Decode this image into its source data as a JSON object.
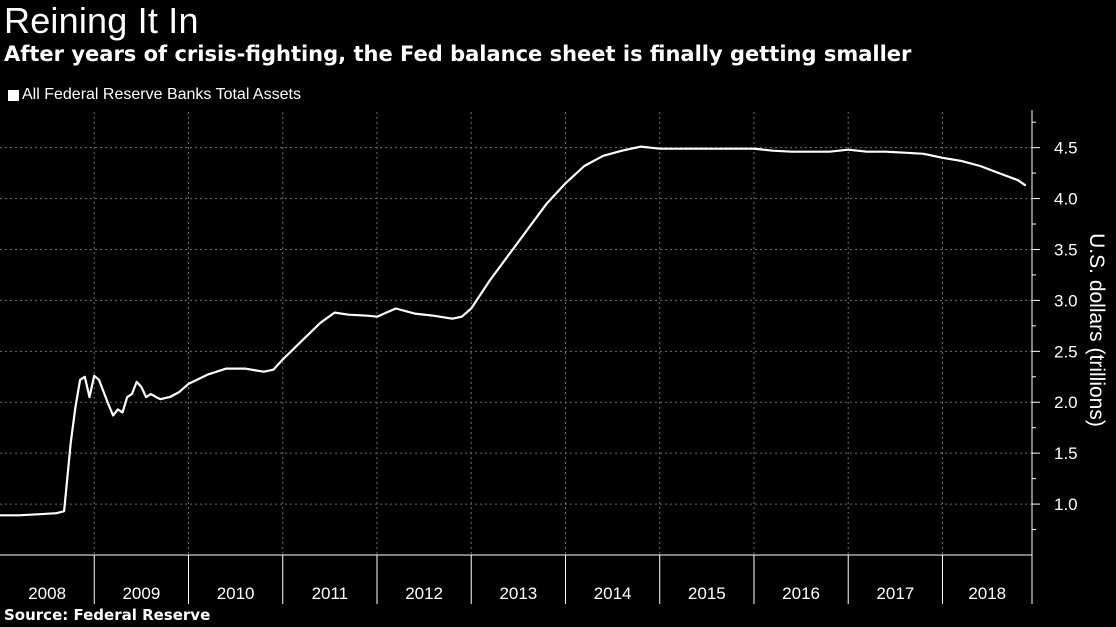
{
  "title": "Reining It In",
  "subtitle": "After years of crisis-fighting, the Fed balance sheet is finally getting smaller",
  "source": "Source: Federal Reserve",
  "colors": {
    "background": "#000000",
    "line": "#ffffff",
    "grid": "#6e6e6e",
    "text": "#ffffff"
  },
  "chart_data": {
    "type": "line",
    "title": "Reining It In",
    "subtitle": "After years of crisis-fighting, the Fed balance sheet is finally getting smaller",
    "ylabel": "U.S. dollars (trillions)",
    "xlabel": "",
    "ylim": [
      0.5,
      4.85
    ],
    "xlim": [
      2008.0,
      2018.95
    ],
    "yticks": [
      "1.0",
      "1.5",
      "2.0",
      "2.5",
      "3.0",
      "3.5",
      "4.0",
      "4.5"
    ],
    "ytick_values": [
      1.0,
      1.5,
      2.0,
      2.5,
      3.0,
      3.5,
      4.0,
      4.5
    ],
    "xticks": [
      "2008",
      "2009",
      "2010",
      "2011",
      "2012",
      "2013",
      "2014",
      "2015",
      "2016",
      "2017",
      "2018"
    ],
    "grid": true,
    "legend_position": "top-left",
    "series": [
      {
        "name": "All Federal Reserve Banks Total Assets",
        "x": [
          2008.0,
          2008.2,
          2008.4,
          2008.6,
          2008.68,
          2008.75,
          2008.8,
          2008.85,
          2008.9,
          2008.95,
          2009.0,
          2009.05,
          2009.1,
          2009.15,
          2009.2,
          2009.25,
          2009.3,
          2009.35,
          2009.4,
          2009.45,
          2009.5,
          2009.55,
          2009.6,
          2009.7,
          2009.8,
          2009.9,
          2010.0,
          2010.2,
          2010.4,
          2010.6,
          2010.8,
          2010.9,
          2011.0,
          2011.2,
          2011.4,
          2011.55,
          2011.7,
          2011.9,
          2012.0,
          2012.2,
          2012.4,
          2012.6,
          2012.8,
          2012.9,
          2013.0,
          2013.2,
          2013.4,
          2013.6,
          2013.8,
          2014.0,
          2014.2,
          2014.4,
          2014.6,
          2014.8,
          2015.0,
          2015.2,
          2015.4,
          2015.6,
          2015.8,
          2016.0,
          2016.2,
          2016.4,
          2016.6,
          2016.8,
          2017.0,
          2017.2,
          2017.4,
          2017.6,
          2017.8,
          2018.0,
          2018.2,
          2018.4,
          2018.6,
          2018.8,
          2018.88
        ],
        "y": [
          0.89,
          0.89,
          0.9,
          0.91,
          0.93,
          1.6,
          1.95,
          2.22,
          2.25,
          2.05,
          2.26,
          2.22,
          2.1,
          1.98,
          1.87,
          1.93,
          1.9,
          2.05,
          2.08,
          2.2,
          2.15,
          2.05,
          2.08,
          2.03,
          2.05,
          2.1,
          2.18,
          2.27,
          2.33,
          2.33,
          2.3,
          2.32,
          2.42,
          2.6,
          2.78,
          2.88,
          2.86,
          2.85,
          2.84,
          2.92,
          2.87,
          2.85,
          2.82,
          2.84,
          2.92,
          3.2,
          3.45,
          3.7,
          3.95,
          4.15,
          4.32,
          4.42,
          4.47,
          4.51,
          4.49,
          4.49,
          4.49,
          4.49,
          4.49,
          4.49,
          4.47,
          4.46,
          4.46,
          4.46,
          4.48,
          4.46,
          4.46,
          4.45,
          4.44,
          4.4,
          4.37,
          4.32,
          4.25,
          4.18,
          4.13
        ]
      }
    ]
  }
}
